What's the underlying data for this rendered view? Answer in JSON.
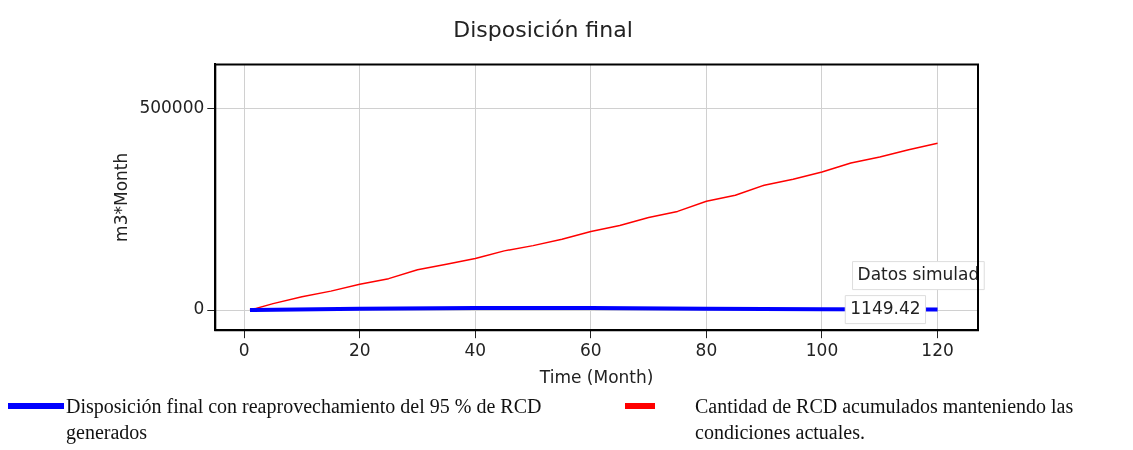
{
  "chart_data": {
    "type": "line",
    "title": "Disposición final",
    "xlabel": "Time (Month)",
    "ylabel": "m3*Month",
    "xlim": [
      -5,
      127
    ],
    "xticks": [
      0,
      20,
      40,
      60,
      80,
      100,
      120
    ],
    "ylim": [
      -50000,
      610000
    ],
    "yticks": [
      0,
      500000
    ],
    "grid": true,
    "legend": "bottom",
    "marker": "none",
    "line_style": "solid",
    "series": [
      {
        "name": "Disposición final con reaprovechamiento del 95 % de RCD generados",
        "color": "#0000ff",
        "x": [
          1,
          20,
          40,
          60,
          80,
          100,
          120
        ],
        "values": [
          0,
          3000,
          5000,
          5000,
          3000,
          2000,
          1149.42
        ]
      },
      {
        "name": "Cantidad de RCD acumulados manteniendo las condiciones actuales.",
        "color": "#ff0000",
        "x": [
          1,
          5,
          10,
          15,
          20,
          25,
          30,
          35,
          40,
          45,
          50,
          55,
          60,
          65,
          70,
          75,
          80,
          85,
          90,
          95,
          100,
          105,
          110,
          115,
          120
        ],
        "values": [
          0,
          16000,
          33000,
          47000,
          64000,
          78000,
          100000,
          114000,
          128000,
          147000,
          160000,
          176000,
          195000,
          210000,
          230000,
          245000,
          270000,
          285000,
          310000,
          325000,
          343000,
          365000,
          380000,
          398000,
          414000
        ]
      }
    ],
    "annotations": [
      {
        "text": "1149.42",
        "x": 120,
        "y": 1149.42
      },
      "Datos simulad"
    ]
  }
}
